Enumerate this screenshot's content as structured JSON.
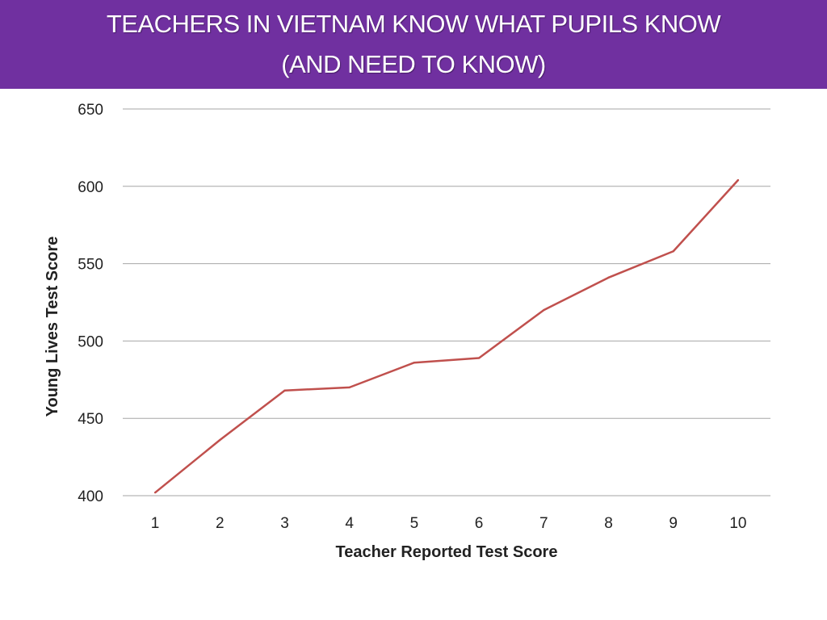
{
  "title_lines": [
    "TEACHERS IN VIETNAM KNOW WHAT PUPILS KNOW",
    "(AND NEED TO KNOW)"
  ],
  "colors": {
    "title_bar": "#7030a0",
    "title_text": "#ffffff",
    "series_line": "#c0504d",
    "gridline": "#a6a6a6"
  },
  "chart_data": {
    "type": "line",
    "title": "TEACHERS IN VIETNAM KNOW WHAT PUPILS KNOW (AND NEED TO KNOW)",
    "xlabel": "Teacher Reported Test Score",
    "ylabel": "Young Lives Test Score",
    "categories": [
      "1",
      "2",
      "3",
      "4",
      "5",
      "6",
      "7",
      "8",
      "9",
      "10"
    ],
    "series": [
      {
        "values": [
          402,
          436,
          468,
          470,
          486,
          489,
          520,
          541,
          558,
          604
        ]
      }
    ],
    "ylim": [
      400,
      650
    ],
    "yticks": [
      "400",
      "450",
      "500",
      "550",
      "600",
      "650"
    ],
    "grid": true,
    "legend": "none"
  }
}
